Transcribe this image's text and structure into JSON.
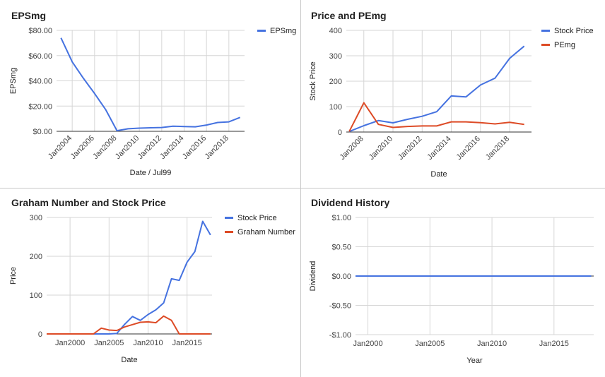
{
  "chart_data": [
    {
      "id": "p1",
      "type": "line",
      "title": "EPSmg",
      "xlabel": "Date / Jul99",
      "ylabel": "EPSmg",
      "x_ticks": [
        "Jan2004",
        "Jan2006",
        "Jan2008",
        "Jan2010",
        "Jan2012",
        "Jan2014",
        "Jan2016",
        "Jan2018"
      ],
      "y_ticks": [
        "$0.00",
        "$20.00",
        "$40.00",
        "$60.00",
        "$80.00"
      ],
      "ylim": [
        0,
        80
      ],
      "grid": true,
      "legend": "top-right",
      "series": [
        {
          "name": "EPSmg",
          "color": "#4572e0",
          "x": [
            "2003-01",
            "2004-01",
            "2005-01",
            "2006-01",
            "2007-01",
            "2008-01",
            "2009-01",
            "2010-01",
            "2011-01",
            "2012-01",
            "2013-01",
            "2014-01",
            "2015-01",
            "2016-01",
            "2017-01",
            "2018-01",
            "2019-01"
          ],
          "values": [
            74,
            55,
            42,
            30,
            17,
            0.5,
            2,
            2.5,
            2.8,
            3,
            4,
            3.8,
            3.6,
            5,
            7,
            7.5,
            11
          ]
        }
      ]
    },
    {
      "id": "p2",
      "type": "line",
      "title": "Price and PEmg",
      "xlabel": "Date",
      "ylabel": "Stock Price",
      "x_ticks": [
        "Jan2008",
        "Jan2010",
        "Jan2012",
        "Jan2014",
        "Jan2016",
        "Jan2018"
      ],
      "y_ticks": [
        "0",
        "100",
        "200",
        "300",
        "400"
      ],
      "ylim": [
        0,
        400
      ],
      "grid": true,
      "legend": "top-right",
      "series": [
        {
          "name": "Stock Price",
          "color": "#4572e0",
          "x": [
            "2007-01",
            "2008-01",
            "2009-01",
            "2010-01",
            "2011-01",
            "2012-01",
            "2013-01",
            "2014-01",
            "2015-01",
            "2016-01",
            "2017-01",
            "2018-01",
            "2019-01"
          ],
          "values": [
            2,
            25,
            45,
            36,
            50,
            62,
            80,
            142,
            138,
            185,
            212,
            290,
            338
          ]
        },
        {
          "name": "PEmg",
          "color": "#dd4b26",
          "x": [
            "2007-01",
            "2008-01",
            "2009-01",
            "2010-01",
            "2011-01",
            "2012-01",
            "2013-01",
            "2014-01",
            "2015-01",
            "2016-01",
            "2017-01",
            "2018-01",
            "2019-01"
          ],
          "values": [
            2,
            115,
            30,
            18,
            22,
            24,
            24,
            40,
            40,
            37,
            32,
            38,
            30
          ]
        }
      ]
    },
    {
      "id": "p3",
      "type": "line",
      "title": "Graham Number and Stock Price",
      "xlabel": "Date",
      "ylabel": "Price",
      "x_ticks": [
        "Jan2000",
        "Jan2005",
        "Jan2010",
        "Jan2015"
      ],
      "y_ticks": [
        "0",
        "100",
        "200",
        "300"
      ],
      "ylim": [
        0,
        300
      ],
      "grid": true,
      "legend": "top-right",
      "series": [
        {
          "name": "Stock Price",
          "color": "#4572e0",
          "x": [
            "1997-01",
            "1998-01",
            "1999-01",
            "2000-01",
            "2001-01",
            "2002-01",
            "2003-01",
            "2004-01",
            "2005-01",
            "2006-01",
            "2007-01",
            "2008-01",
            "2009-01",
            "2010-01",
            "2011-01",
            "2012-01",
            "2013-01",
            "2014-01",
            "2015-01",
            "2016-01",
            "2017-01",
            "2018-01"
          ],
          "values": [
            0,
            0,
            0,
            0,
            0,
            0,
            0,
            0,
            0,
            1,
            25,
            45,
            35,
            50,
            62,
            80,
            142,
            138,
            185,
            212,
            290,
            255
          ]
        },
        {
          "name": "Graham Number",
          "color": "#dd4b26",
          "x": [
            "1997-01",
            "1998-01",
            "1999-01",
            "2000-01",
            "2001-01",
            "2002-01",
            "2003-01",
            "2004-01",
            "2005-01",
            "2006-01",
            "2007-01",
            "2008-01",
            "2009-01",
            "2010-01",
            "2011-01",
            "2012-01",
            "2013-01",
            "2014-01",
            "2015-01",
            "2016-01",
            "2017-01",
            "2018-01"
          ],
          "values": [
            0,
            0,
            0,
            0,
            0,
            0,
            0,
            15,
            10,
            9,
            18,
            24,
            30,
            31,
            29,
            46,
            35,
            0,
            0,
            0,
            0,
            0
          ]
        }
      ]
    },
    {
      "id": "p4",
      "type": "line",
      "title": "Dividend History",
      "xlabel": "Year",
      "ylabel": "Dividend",
      "x_ticks": [
        "Jan2000",
        "Jan2005",
        "Jan2010",
        "Jan2015"
      ],
      "y_ticks": [
        "$1.00",
        "$0.50",
        "$0.00",
        "-$0.50",
        "-$1.00"
      ],
      "ylim": [
        -1,
        1
      ],
      "grid": true,
      "legend": "none",
      "series": [
        {
          "name": "",
          "color": "#4572e0",
          "x": [
            "1999-01",
            "2018-01"
          ],
          "values": [
            0,
            0
          ]
        }
      ]
    }
  ]
}
